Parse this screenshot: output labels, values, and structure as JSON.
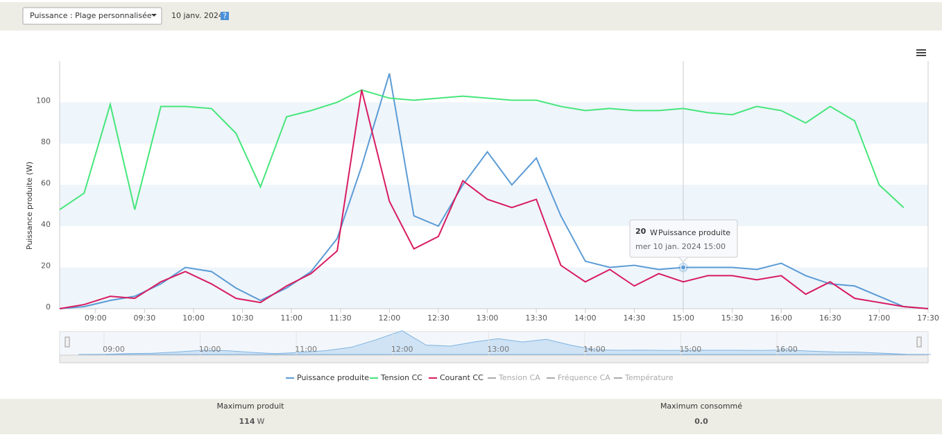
{
  "header": {
    "dropdown": "Puissance : Plage personnalisée",
    "date": "10 janv. 2024",
    "help": "?"
  },
  "chart_data": {
    "type": "line",
    "y_label": "Puissance produite (W)",
    "x": [
      "08:38",
      "08:53",
      "09:09",
      "09:24",
      "09:40",
      "09:55",
      "10:11",
      "10:26",
      "10:41",
      "10:57",
      "11:12",
      "11:28",
      "11:43",
      "12:00",
      "12:15",
      "12:30",
      "12:45",
      "13:00",
      "13:15",
      "13:30",
      "13:45",
      "14:00",
      "14:15",
      "14:30",
      "14:45",
      "15:00",
      "15:15",
      "15:30",
      "15:45",
      "16:00",
      "16:15",
      "16:30",
      "16:45",
      "17:00",
      "17:15",
      "17:30"
    ],
    "series": [
      {
        "name": "Puissance produite",
        "color": "#5b9bd5",
        "values": [
          0,
          1,
          4,
          6,
          12,
          20,
          18,
          10,
          4,
          10,
          18,
          34,
          69,
          114,
          45,
          40,
          60,
          76,
          60,
          73,
          45,
          23,
          20,
          21,
          19,
          20,
          20,
          20,
          19,
          22,
          16,
          12,
          11,
          6,
          1,
          0
        ]
      },
      {
        "name": "Tension CC",
        "color": "#45e67a",
        "values": [
          48,
          56,
          99,
          48,
          98,
          98,
          97,
          85,
          59,
          93,
          96,
          100,
          106,
          102,
          101,
          102,
          103,
          102,
          101,
          101,
          98,
          96,
          97,
          96,
          96,
          97,
          95,
          94,
          98,
          96,
          90,
          98,
          91,
          60,
          49,
          null
        ]
      },
      {
        "name": "Courant CC",
        "color": "#d81b60",
        "values": [
          0,
          2,
          6,
          5,
          13,
          18,
          12,
          5,
          3,
          11,
          17,
          28,
          106,
          52,
          29,
          35,
          62,
          53,
          49,
          53,
          21,
          13,
          19,
          11,
          17,
          13,
          16,
          16,
          14,
          16,
          7,
          13,
          5,
          3,
          1,
          0
        ]
      }
    ],
    "hidden_series": [
      "Tension CA",
      "Fréquence CA",
      "Température"
    ],
    "hidden_color": "#aaaaaa",
    "xlim": [
      "08:38",
      "17:30"
    ],
    "xticks": [
      "09:00",
      "09:30",
      "10:00",
      "10:30",
      "11:00",
      "11:30",
      "12:00",
      "12:30",
      "13:00",
      "13:30",
      "14:00",
      "14:30",
      "15:00",
      "15:30",
      "16:00",
      "16:30",
      "17:00",
      "17:30"
    ],
    "ylim": [
      0,
      120
    ],
    "yticks": [
      0,
      20,
      40,
      60,
      80,
      100
    ],
    "bands": true,
    "navigator_ticks": [
      "09:00",
      "10:00",
      "11:00",
      "12:00",
      "13:00",
      "14:00",
      "15:00",
      "16:00"
    ],
    "tooltip": {
      "series": 0,
      "index": 25,
      "unit": "W",
      "date": "mer 10 jan. 2024 15:00"
    }
  },
  "footer": {
    "left_label": "Maximum produit",
    "left_value": "114",
    "left_unit": "W",
    "right_label": "Maximum consommé",
    "right_value": "0.0"
  }
}
